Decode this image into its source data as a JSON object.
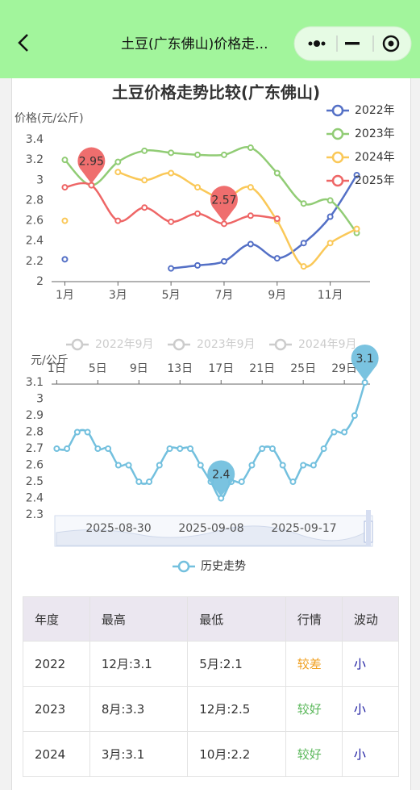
{
  "header": {
    "title": "土豆(广东佛山)价格走..."
  },
  "chart_data": [
    {
      "type": "line",
      "title": "土豆价格走势比较(广东佛山)",
      "y_label": "价格(元/公斤)",
      "categories": [
        "1月",
        null,
        "3月",
        null,
        "5月",
        null,
        "7月",
        null,
        "9月",
        null,
        "11月",
        null
      ],
      "series": [
        {
          "name": "2022年",
          "color": "#5470c6",
          "values": [
            2.22,
            null,
            null,
            null,
            2.13,
            2.16,
            2.2,
            2.37,
            2.23,
            2.38,
            2.64,
            3.05
          ]
        },
        {
          "name": "2023年",
          "color": "#91cc75",
          "values": [
            3.2,
            2.95,
            3.18,
            3.29,
            3.27,
            3.25,
            3.25,
            3.32,
            3.07,
            2.77,
            2.8,
            2.48
          ]
        },
        {
          "name": "2024年",
          "color": "#fac858",
          "values": [
            2.6,
            null,
            3.08,
            3.0,
            3.07,
            2.93,
            2.82,
            2.93,
            2.6,
            2.15,
            2.38,
            2.52
          ]
        },
        {
          "name": "2025年",
          "color": "#ee6666",
          "values": [
            2.93,
            2.95,
            2.6,
            2.73,
            2.59,
            2.67,
            2.57,
            2.65,
            2.62,
            null,
            null,
            null
          ],
          "mark_extremes": true
        }
      ],
      "ylim": [
        2,
        3.4
      ],
      "yticks": [
        2,
        2.2,
        2.4,
        2.6,
        2.8,
        3,
        3.2,
        3.4
      ],
      "grid": false,
      "smooth": true,
      "x_axis": "bottom",
      "legend_position": "top-right"
    },
    {
      "type": "line",
      "y_label": "元/公斤",
      "categories": [
        "1日",
        null,
        null,
        null,
        "5日",
        null,
        null,
        null,
        "9日",
        null,
        null,
        null,
        "13日",
        null,
        null,
        null,
        "17日",
        null,
        null,
        null,
        "21日",
        null,
        null,
        null,
        "25日",
        null,
        null,
        null,
        "29日",
        null,
        null
      ],
      "series": [
        {
          "name": "历史走势",
          "color": "#73c0de",
          "mark_extremes": true,
          "values": [
            2.7,
            2.7,
            2.8,
            2.8,
            2.7,
            2.7,
            2.6,
            2.6,
            2.5,
            2.5,
            2.6,
            2.7,
            2.7,
            2.7,
            2.6,
            2.5,
            2.4,
            2.5,
            2.5,
            2.6,
            2.7,
            2.7,
            2.6,
            2.5,
            2.6,
            2.6,
            2.7,
            2.8,
            2.8,
            2.9,
            3.1
          ]
        }
      ],
      "inactive_legend": [
        "2022年9月",
        "2023年9月",
        "2024年9月"
      ],
      "slider_labels": [
        "2025-08-30",
        "2025-09-08",
        "2025-09-17"
      ],
      "ylim": [
        2.3,
        3.1
      ],
      "yticks": [
        2.3,
        2.4,
        2.5,
        2.6,
        2.7,
        2.8,
        2.9,
        3,
        3.1
      ],
      "grid": false,
      "smooth": true,
      "x_axis": "top",
      "legend_position": "bottom"
    }
  ],
  "table": {
    "columns": [
      "年度",
      "最高",
      "最低",
      "行情",
      "波动"
    ],
    "rows": [
      [
        "2022",
        "12月:3.1",
        "5月:2.1",
        "较差",
        "小"
      ],
      [
        "2023",
        "8月:3.3",
        "12月:2.5",
        "较好",
        "小"
      ],
      [
        "2024",
        "3月:3.1",
        "10月:2.2",
        "较好",
        "小"
      ]
    ]
  }
}
